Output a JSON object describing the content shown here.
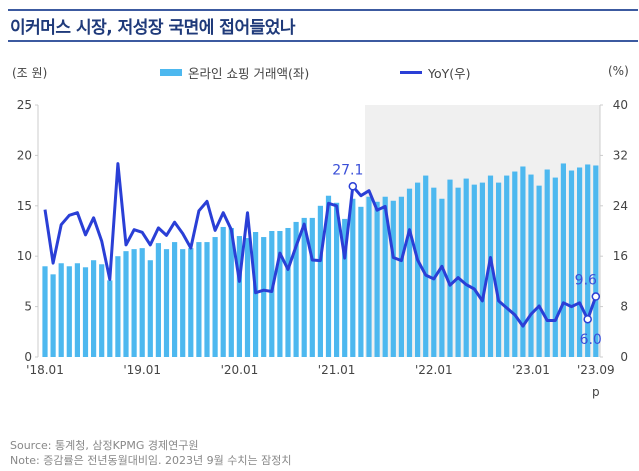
{
  "title": "이커머스 시장, 저성장 국면에 접어들었나",
  "left_unit": "(조 원)",
  "right_unit": "(%)",
  "footer": {
    "source": "Source: 통계청, 삼정KPMG 경제연구원",
    "note": "Note: 증감률은 전년동월대비임. 2023년 9월 수치는 잠정치"
  },
  "colors": {
    "bar": "#4db8ef",
    "line": "#2a3fd6",
    "title": "#1f3a7a",
    "shade": "#f0f0f0"
  },
  "chart_data": {
    "type": "bar+line",
    "x_tick_labels": [
      "'18.01",
      "'19.01",
      "'20.01",
      "'21.01",
      "'22.01",
      "'23.01",
      "'23.09"
    ],
    "x_tick_months": [
      "18.01",
      "19.01",
      "20.01",
      "21.01",
      "22.01",
      "23.01",
      "23.09"
    ],
    "last_point_note": "p",
    "categories": [
      "18.01",
      "18.02",
      "18.03",
      "18.04",
      "18.05",
      "18.06",
      "18.07",
      "18.08",
      "18.09",
      "18.10",
      "18.11",
      "18.12",
      "19.01",
      "19.02",
      "19.03",
      "19.04",
      "19.05",
      "19.06",
      "19.07",
      "19.08",
      "19.09",
      "19.10",
      "19.11",
      "19.12",
      "20.01",
      "20.02",
      "20.03",
      "20.04",
      "20.05",
      "20.06",
      "20.07",
      "20.08",
      "20.09",
      "20.10",
      "20.11",
      "20.12",
      "21.01",
      "21.02",
      "21.03",
      "21.04",
      "21.05",
      "21.06",
      "21.07",
      "21.08",
      "21.09",
      "21.10",
      "21.11",
      "21.12",
      "22.01",
      "22.02",
      "22.03",
      "22.04",
      "22.05",
      "22.06",
      "22.07",
      "22.08",
      "22.09",
      "22.10",
      "22.11",
      "22.12",
      "23.01",
      "23.02",
      "23.03",
      "23.04",
      "23.05",
      "23.06",
      "23.07",
      "23.08",
      "23.09"
    ],
    "series": [
      {
        "name": "온라인 쇼핑 거래액(좌)",
        "type": "bar",
        "axis": "left",
        "values": [
          9.0,
          8.2,
          9.3,
          9.0,
          9.3,
          8.9,
          9.6,
          9.2,
          7.6,
          10.0,
          10.5,
          10.7,
          10.8,
          9.6,
          11.3,
          10.7,
          11.4,
          10.7,
          10.8,
          11.4,
          11.4,
          11.9,
          12.9,
          12.8,
          12.0,
          11.8,
          12.4,
          11.9,
          12.5,
          12.5,
          12.8,
          13.4,
          13.8,
          13.8,
          15.0,
          16.0,
          15.3,
          13.7,
          15.7,
          14.9,
          15.9,
          15.4,
          15.9,
          15.5,
          15.9,
          16.7,
          17.3,
          18.0,
          16.8,
          15.7,
          17.6,
          16.8,
          17.7,
          17.1,
          17.3,
          18.0,
          17.3,
          18.0,
          18.4,
          18.9,
          18.1,
          17.0,
          18.6,
          17.8,
          19.2,
          18.5,
          18.8,
          19.1,
          19.0
        ]
      },
      {
        "name": "YoY(우)",
        "type": "line",
        "axis": "right",
        "values": [
          23.4,
          14.9,
          21.0,
          22.5,
          22.9,
          19.4,
          22.1,
          18.4,
          12.3,
          30.7,
          17.8,
          20.2,
          19.8,
          17.8,
          20.5,
          19.3,
          21.4,
          19.6,
          17.3,
          23.2,
          24.7,
          20.1,
          22.9,
          20.2,
          12.0,
          22.9,
          10.2,
          10.6,
          10.4,
          16.5,
          13.9,
          17.6,
          21.1,
          15.4,
          15.3,
          24.4,
          24.0,
          15.7,
          27.1,
          25.6,
          26.4,
          23.3,
          23.9,
          15.8,
          15.3,
          20.2,
          15.4,
          13.0,
          12.4,
          14.4,
          11.4,
          12.6,
          11.5,
          10.8,
          8.9,
          15.8,
          8.9,
          7.8,
          6.7,
          4.9,
          6.8,
          8.1,
          5.8,
          5.8,
          8.6,
          8.0,
          8.6,
          6.0,
          9.6
        ]
      }
    ],
    "annotations": [
      {
        "month": "21.03",
        "label": "27.1"
      },
      {
        "month": "23.08",
        "label": "6.0"
      },
      {
        "month": "23.09",
        "label": "9.6"
      }
    ],
    "shaded_from": "21.05",
    "y_left": {
      "range": [
        0,
        25
      ],
      "ticks": [
        "0",
        "5",
        "10",
        "15",
        "20",
        "25"
      ]
    },
    "y_right": {
      "range": [
        0,
        40
      ],
      "ticks": [
        "0",
        "8",
        "16",
        "24",
        "32",
        "40"
      ]
    },
    "grid": false,
    "legend_placement": "top"
  }
}
